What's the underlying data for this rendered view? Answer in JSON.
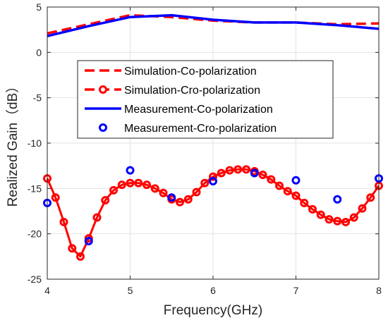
{
  "chart_data": {
    "type": "line",
    "title": "",
    "xlabel": "Frequency(GHz)",
    "ylabel": "Realized Gain（dB）",
    "xlim": [
      4,
      8
    ],
    "ylim": [
      -25,
      5
    ],
    "xticks": [
      "4",
      "5",
      "6",
      "7",
      "8"
    ],
    "yticks": [
      "5",
      "0",
      "-5",
      "-10",
      "-15",
      "-20",
      "-25"
    ],
    "grid": true,
    "legend_position": "center",
    "series": [
      {
        "name": "Simulation-Co-polarization",
        "style": "dashed",
        "color": "#ff0000",
        "x": [
          4.0,
          4.5,
          5.0,
          5.5,
          6.0,
          6.5,
          7.0,
          7.5,
          8.0
        ],
        "y": [
          2.1,
          3.1,
          4.1,
          3.9,
          3.5,
          3.3,
          3.3,
          3.1,
          3.2
        ]
      },
      {
        "name": "Simulation-Cro-polarization",
        "style": "line-circle",
        "color": "#ff0000",
        "x": [
          4.0,
          4.1,
          4.2,
          4.3,
          4.4,
          4.5,
          4.6,
          4.7,
          4.8,
          4.9,
          5.0,
          5.1,
          5.2,
          5.3,
          5.4,
          5.5,
          5.6,
          5.7,
          5.8,
          5.9,
          6.0,
          6.1,
          6.2,
          6.3,
          6.4,
          6.5,
          6.6,
          6.7,
          6.8,
          6.9,
          7.0,
          7.1,
          7.2,
          7.3,
          7.4,
          7.5,
          7.6,
          7.7,
          7.8,
          7.9,
          8.0
        ],
        "y": [
          -13.9,
          -16.0,
          -18.7,
          -21.6,
          -22.5,
          -20.5,
          -18.2,
          -16.3,
          -15.2,
          -14.6,
          -14.4,
          -14.4,
          -14.6,
          -15.0,
          -15.5,
          -16.2,
          -16.5,
          -16.2,
          -15.4,
          -14.4,
          -13.7,
          -13.3,
          -13.0,
          -12.9,
          -12.9,
          -13.1,
          -13.5,
          -14.0,
          -14.7,
          -15.3,
          -15.8,
          -16.6,
          -17.3,
          -17.9,
          -18.4,
          -18.6,
          -18.7,
          -18.2,
          -17.2,
          -16.0,
          -14.7
        ]
      },
      {
        "name": "Measurement-Co-polarization",
        "style": "solid",
        "color": "#0000ff",
        "x": [
          4.0,
          4.5,
          5.0,
          5.5,
          6.0,
          6.5,
          7.0,
          7.5,
          8.0
        ],
        "y": [
          1.8,
          2.9,
          3.9,
          4.1,
          3.6,
          3.3,
          3.3,
          3.0,
          2.6
        ]
      },
      {
        "name": "Measurement-Cro-polarization",
        "style": "markers",
        "color": "#0000ff",
        "x": [
          4.0,
          4.5,
          5.0,
          5.5,
          6.0,
          6.5,
          7.0,
          7.5,
          8.0
        ],
        "y": [
          -16.6,
          -20.8,
          -13.0,
          -16.0,
          -14.2,
          -13.3,
          -14.1,
          -16.2,
          -13.9
        ]
      }
    ]
  }
}
